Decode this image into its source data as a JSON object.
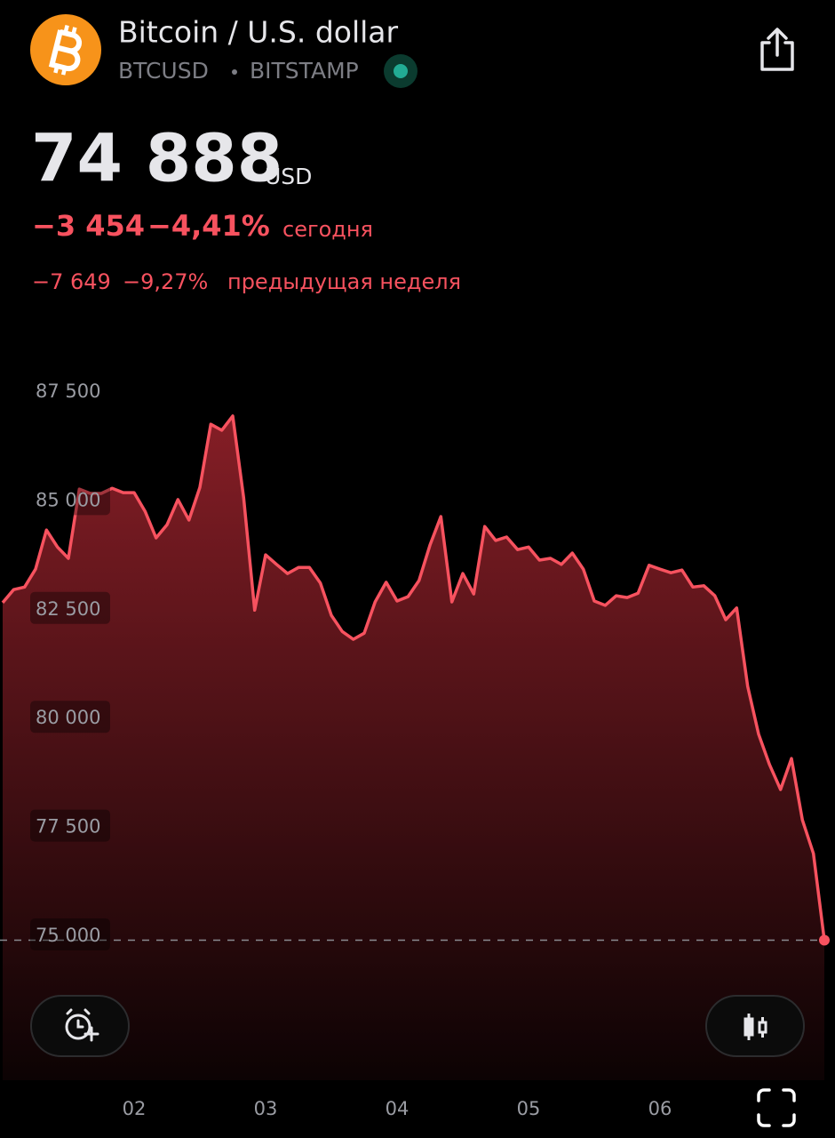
{
  "header": {
    "title": "Bitcoin / U.S. dollar",
    "symbol": "BTCUSD",
    "exchange": "BITSTAMP"
  },
  "quote": {
    "price": "74 888",
    "currency": "USD",
    "change_today": "−3 454",
    "change_today_pct": "−4,41%",
    "today_label": "сегодня",
    "change_week": "−7 649",
    "change_week_pct": "−9,27%",
    "week_label": "предыдущая неделя"
  },
  "chart_data": {
    "type": "line",
    "categories": [
      null,
      null,
      null,
      null,
      null,
      null,
      null,
      null,
      null,
      null,
      null,
      null,
      "02",
      null,
      null,
      null,
      null,
      null,
      null,
      null,
      null,
      null,
      null,
      null,
      "03",
      null,
      null,
      null,
      null,
      null,
      null,
      null,
      null,
      null,
      null,
      null,
      "04",
      null,
      null,
      null,
      null,
      null,
      null,
      null,
      null,
      null,
      null,
      null,
      "05",
      null,
      null,
      null,
      null,
      null,
      null,
      null,
      null,
      null,
      null,
      null,
      "06",
      null,
      null,
      null,
      null,
      null,
      null,
      null,
      null,
      null,
      null,
      null,
      null,
      null,
      null,
      null
    ],
    "series": [
      {
        "color": "#f7525f",
        "values": [
          82640,
          82940,
          83000,
          83410,
          84310,
          83920,
          83660,
          85250,
          85150,
          85150,
          85270,
          85170,
          85170,
          84740,
          84130,
          84430,
          85010,
          84540,
          85290,
          86740,
          86600,
          86930,
          85050,
          82470,
          83740,
          83520,
          83310,
          83450,
          83450,
          83090,
          82350,
          81980,
          81800,
          81940,
          82660,
          83110,
          82680,
          82780,
          83150,
          83960,
          84620,
          82660,
          83310,
          82840,
          84390,
          84070,
          84150,
          83860,
          83920,
          83620,
          83660,
          83520,
          83780,
          83410,
          82680,
          82580,
          82800,
          82760,
          82860,
          83500,
          83410,
          83330,
          83390,
          83000,
          83030,
          82800,
          82250,
          82520,
          80720,
          79620,
          78920,
          78350,
          79060,
          77650,
          76880,
          74888
        ]
      }
    ],
    "ylim": [
      74000,
      88500
    ],
    "yticks": [
      {
        "value": 75000,
        "label": "75 000"
      },
      {
        "value": 77500,
        "label": "77 500"
      },
      {
        "value": 80000,
        "label": "80 000"
      },
      {
        "value": 82500,
        "label": "82 500"
      },
      {
        "value": 85000,
        "label": "85 000"
      },
      {
        "value": 87500,
        "label": "87 500"
      }
    ]
  }
}
